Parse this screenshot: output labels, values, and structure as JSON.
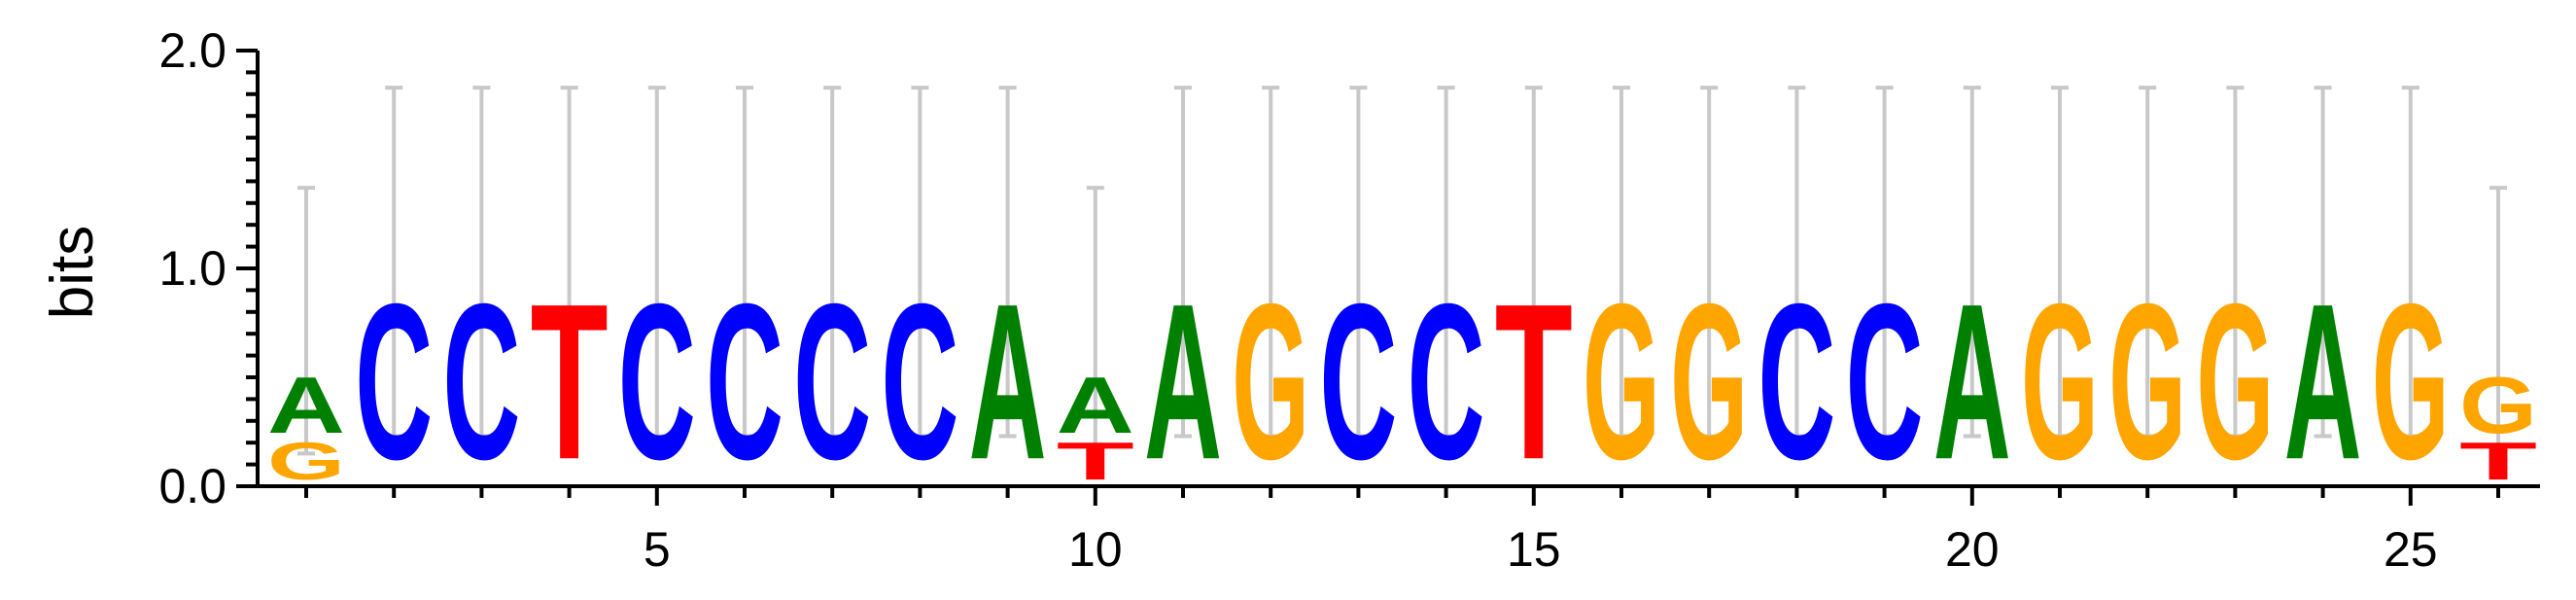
{
  "chart_data": {
    "type": "sequence-logo",
    "title": "",
    "ylabel": "bits",
    "xlabel": "",
    "ylim": [
      0,
      2
    ],
    "y_ticks": [
      {
        "value": 0,
        "label": "0.0"
      },
      {
        "value": 1,
        "label": "1.0"
      },
      {
        "value": 2,
        "label": "2.0"
      }
    ],
    "x_ticks": [
      {
        "value": 5,
        "label": "5"
      },
      {
        "value": 10,
        "label": "10"
      },
      {
        "value": 15,
        "label": "15"
      },
      {
        "value": 20,
        "label": "20"
      },
      {
        "value": 25,
        "label": "25"
      }
    ],
    "colors": {
      "A": "#008000",
      "C": "#0000ff",
      "G": "#ffa500",
      "T": "#ff0000",
      "errorbar": "#c8c8c8"
    },
    "positions": [
      {
        "pos": 1,
        "stack": [
          {
            "l": "G",
            "h": 0.2
          },
          {
            "l": "A",
            "h": 0.3
          }
        ],
        "err": [
          0.15,
          1.37
        ]
      },
      {
        "pos": 2,
        "stack": [
          {
            "l": "C",
            "h": 0.83
          }
        ],
        "err": [
          0.23,
          1.83
        ]
      },
      {
        "pos": 3,
        "stack": [
          {
            "l": "C",
            "h": 0.83
          }
        ],
        "err": [
          0.23,
          1.83
        ]
      },
      {
        "pos": 4,
        "stack": [
          {
            "l": "T",
            "h": 0.83
          }
        ],
        "err": [
          0.23,
          1.83
        ]
      },
      {
        "pos": 5,
        "stack": [
          {
            "l": "C",
            "h": 0.83
          }
        ],
        "err": [
          0.23,
          1.83
        ]
      },
      {
        "pos": 6,
        "stack": [
          {
            "l": "C",
            "h": 0.83
          }
        ],
        "err": [
          0.23,
          1.83
        ]
      },
      {
        "pos": 7,
        "stack": [
          {
            "l": "C",
            "h": 0.83
          }
        ],
        "err": [
          0.23,
          1.83
        ]
      },
      {
        "pos": 8,
        "stack": [
          {
            "l": "C",
            "h": 0.83
          }
        ],
        "err": [
          0.23,
          1.83
        ]
      },
      {
        "pos": 9,
        "stack": [
          {
            "l": "A",
            "h": 0.83
          }
        ],
        "err": [
          0.23,
          1.83
        ]
      },
      {
        "pos": 10,
        "stack": [
          {
            "l": "T",
            "h": 0.2
          },
          {
            "l": "A",
            "h": 0.3
          }
        ],
        "err": [
          0.15,
          1.37
        ]
      },
      {
        "pos": 11,
        "stack": [
          {
            "l": "A",
            "h": 0.83
          }
        ],
        "err": [
          0.23,
          1.83
        ]
      },
      {
        "pos": 12,
        "stack": [
          {
            "l": "G",
            "h": 0.83
          }
        ],
        "err": [
          0.23,
          1.83
        ]
      },
      {
        "pos": 13,
        "stack": [
          {
            "l": "C",
            "h": 0.83
          }
        ],
        "err": [
          0.23,
          1.83
        ]
      },
      {
        "pos": 14,
        "stack": [
          {
            "l": "C",
            "h": 0.83
          }
        ],
        "err": [
          0.23,
          1.83
        ]
      },
      {
        "pos": 15,
        "stack": [
          {
            "l": "T",
            "h": 0.83
          }
        ],
        "err": [
          0.23,
          1.83
        ]
      },
      {
        "pos": 16,
        "stack": [
          {
            "l": "G",
            "h": 0.83
          }
        ],
        "err": [
          0.23,
          1.83
        ]
      },
      {
        "pos": 17,
        "stack": [
          {
            "l": "G",
            "h": 0.83
          }
        ],
        "err": [
          0.23,
          1.83
        ]
      },
      {
        "pos": 18,
        "stack": [
          {
            "l": "C",
            "h": 0.83
          }
        ],
        "err": [
          0.23,
          1.83
        ]
      },
      {
        "pos": 19,
        "stack": [
          {
            "l": "C",
            "h": 0.83
          }
        ],
        "err": [
          0.23,
          1.83
        ]
      },
      {
        "pos": 20,
        "stack": [
          {
            "l": "A",
            "h": 0.83
          }
        ],
        "err": [
          0.23,
          1.83
        ]
      },
      {
        "pos": 21,
        "stack": [
          {
            "l": "G",
            "h": 0.83
          }
        ],
        "err": [
          0.23,
          1.83
        ]
      },
      {
        "pos": 22,
        "stack": [
          {
            "l": "G",
            "h": 0.83
          }
        ],
        "err": [
          0.23,
          1.83
        ]
      },
      {
        "pos": 23,
        "stack": [
          {
            "l": "G",
            "h": 0.83
          }
        ],
        "err": [
          0.23,
          1.83
        ]
      },
      {
        "pos": 24,
        "stack": [
          {
            "l": "A",
            "h": 0.83
          }
        ],
        "err": [
          0.23,
          1.83
        ]
      },
      {
        "pos": 25,
        "stack": [
          {
            "l": "G",
            "h": 0.83
          }
        ],
        "err": [
          0.23,
          1.83
        ]
      },
      {
        "pos": 26,
        "stack": [
          {
            "l": "T",
            "h": 0.2
          },
          {
            "l": "G",
            "h": 0.3
          }
        ],
        "err": [
          0.15,
          1.37
        ]
      }
    ]
  }
}
